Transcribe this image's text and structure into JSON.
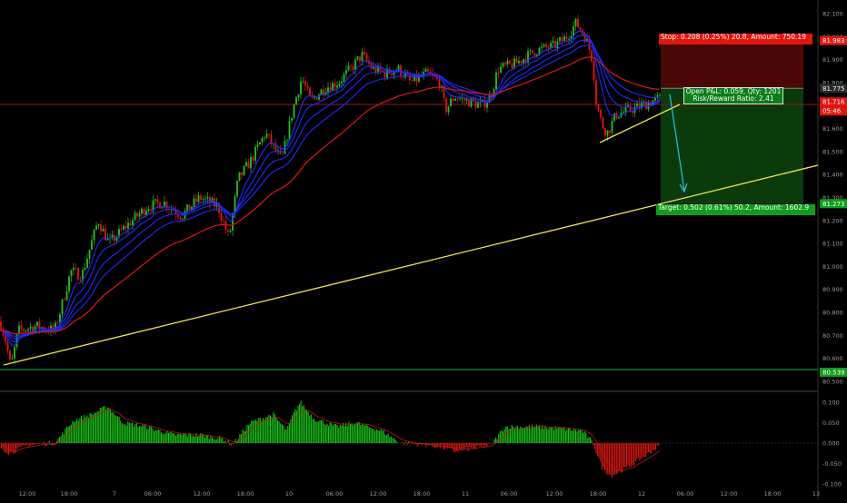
{
  "chart_data": {
    "type": "line",
    "price_axis": {
      "ticks": [
        "82.100",
        "82.000",
        "81.900",
        "81.800",
        "81.700",
        "81.600",
        "81.500",
        "81.400",
        "81.300",
        "81.200",
        "81.100",
        "81.000",
        "80.900",
        "80.800",
        "80.700",
        "80.600",
        "80.500"
      ]
    },
    "oscillator_axis": {
      "ticks": [
        "0.100",
        "0.050",
        "0.000",
        "-0.050",
        "-0.100"
      ]
    },
    "time_axis": {
      "ticks": [
        "12:00",
        "18:00",
        "7",
        "06:00",
        "12:00",
        "18:00",
        "10",
        "06:00",
        "12:00",
        "18:00",
        "11",
        "06:00",
        "12:00",
        "18:00",
        "12",
        "06:00",
        "12:00",
        "18:00",
        "13"
      ]
    },
    "price_tags": [
      {
        "value": "81.983",
        "color": "#e3150f"
      },
      {
        "value": "81.775",
        "color": "#2b2b2b"
      },
      {
        "value": "81.716",
        "color": "#e3150f"
      },
      {
        "value": "05:46",
        "color": "#e3150f"
      },
      {
        "value": "81.273",
        "color": "#0f9d1a"
      },
      {
        "value": "80.539",
        "color": "#0f9d1a"
      }
    ],
    "position": {
      "stop_label": "Stop: 0.208 (0.25%) 20.8, Amount: 750.19",
      "pl_line1": "Open P&L: 0.059, Qty: 1201",
      "pl_line2": "Risk/Reward Ratio: 2.41",
      "target_label": "Target: 0.502 (0.61%) 50.2, Amount: 1602.9",
      "entry": 81.775,
      "stop": 81.983,
      "target": 81.273
    },
    "colors": {
      "up_candle": "#26c21b",
      "down_candle": "#e3150f",
      "ema_fast": "#1f2bff",
      "ema_slow": "#d0151b",
      "trendline": "#f2e84a",
      "hist_up": "#17c317",
      "hist_down": "#d8180f",
      "arrow": "#27c3e6"
    }
  }
}
